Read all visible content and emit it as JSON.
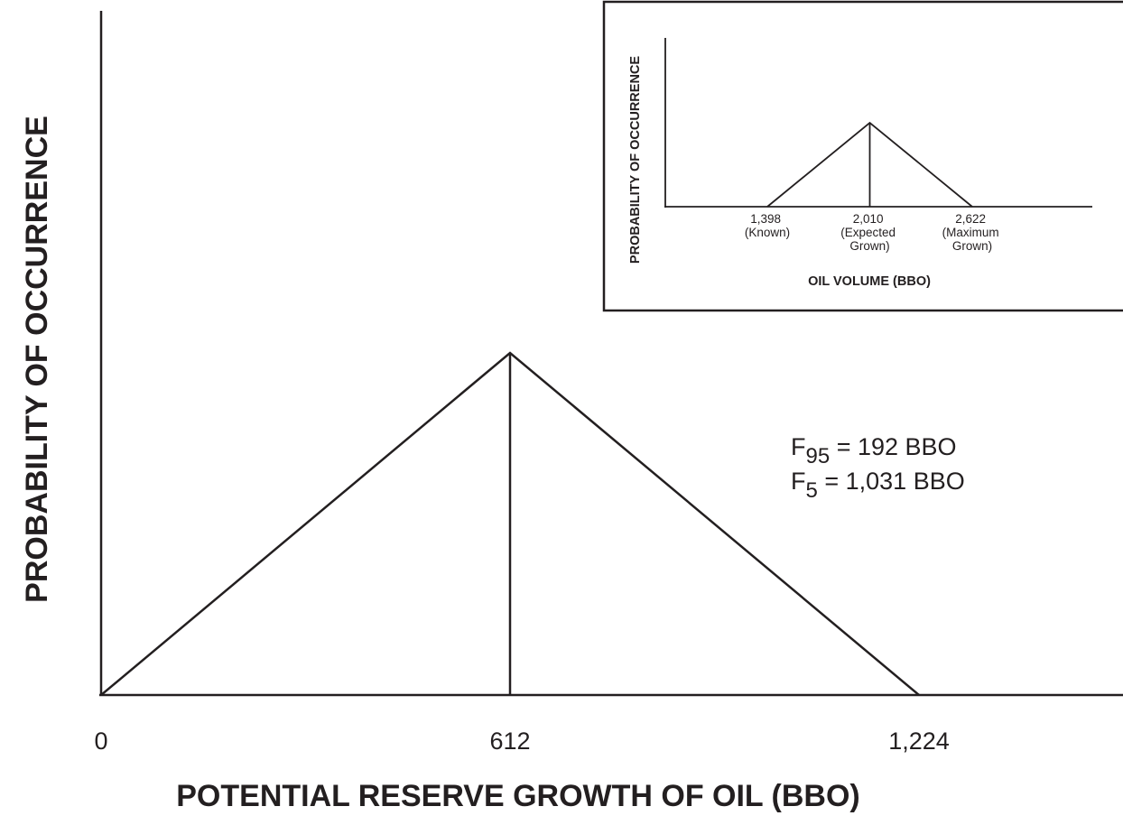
{
  "chart_data": [
    {
      "type": "line",
      "xlabel": "POTENTIAL RESERVE GROWTH OF OIL (BBO)",
      "ylabel": "PROBABILITY OF OCCURRENCE",
      "x_ticks": [
        "0",
        "612",
        "1,224"
      ],
      "series": [
        {
          "x": [
            0,
            612,
            1224
          ],
          "y": [
            0,
            1,
            0
          ]
        }
      ],
      "mode_marker_x": 612,
      "annotations": [
        {
          "base": "F",
          "sub": "95",
          "rest": " = 192 BBO"
        },
        {
          "base": "F",
          "sub": "5",
          "rest": " = 1,031 BBO"
        }
      ],
      "grid": false
    },
    {
      "type": "line",
      "xlabel": "OIL VOLUME (BBO)",
      "ylabel": "PROBABILITY OF OCCURRENCE",
      "x_ticks": [
        {
          "value": "1,398",
          "label": [
            "(Known)"
          ]
        },
        {
          "value": "2,010",
          "label": [
            "(Expected",
            "Grown)"
          ]
        },
        {
          "value": "2,622",
          "label": [
            "(Maximum",
            "Grown)"
          ]
        }
      ],
      "series": [
        {
          "x": [
            1398,
            2010,
            2622
          ],
          "y": [
            0,
            1,
            0
          ]
        }
      ],
      "mode_marker_x": 2010,
      "grid": false
    }
  ]
}
